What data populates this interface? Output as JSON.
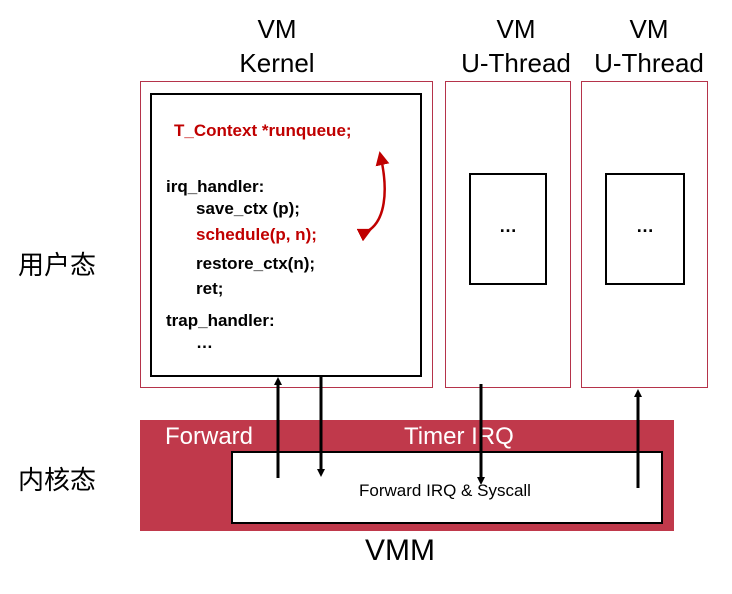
{
  "columns": [
    {
      "line1": "VM",
      "line2": "Kernel"
    },
    {
      "line1": "VM",
      "line2": "U-Thread"
    },
    {
      "line1": "VM",
      "line2": "U-Thread"
    }
  ],
  "side_labels": {
    "user_mode": "用户态",
    "kernel_mode": "内核态"
  },
  "kernel_code": {
    "runqueue_decl": "T_Context *runqueue;",
    "irq_handler": "irq_handler:",
    "save_ctx": "save_ctx (p);",
    "schedule": "schedule(p, n);",
    "restore_ctx": "restore_ctx(n);",
    "ret": "ret;",
    "trap_handler": "trap_handler:",
    "trap_body": "…"
  },
  "uthread_placeholders": [
    "…",
    "…"
  ],
  "vmm": {
    "forward_label": "Forward",
    "timer_irq_label": "Timer IRQ",
    "inner_label": "Forward IRQ & Syscall",
    "title": "VMM"
  },
  "colors": {
    "accent_red": "#c00000",
    "vmm_band": "#c0394b",
    "vm_border": "#b5334a"
  }
}
